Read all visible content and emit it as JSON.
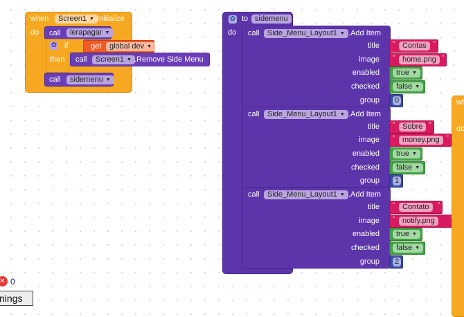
{
  "init_block": {
    "when": "when",
    "component": "Screen1",
    "event": ".Initialize",
    "do": "do",
    "call1": {
      "call": "call",
      "proc": "lerapagar"
    },
    "if_block": {
      "if": "if",
      "then": "then",
      "get": "get",
      "var": "global dev"
    },
    "remove_call": {
      "call": "call",
      "component": "Screen1",
      "method": ".Remove Side Menu"
    },
    "call2": {
      "call": "call",
      "proc": "sidemenu"
    }
  },
  "proc_block": {
    "to": "to",
    "name": "sidemenu",
    "do": "do",
    "items": [
      {
        "call": "call",
        "component": "Side_Menu_Layout1",
        "method": ".Add Item",
        "title_label": "title",
        "title": "Contas",
        "image_label": "image",
        "image": "home.png",
        "enabled_label": "enabled",
        "enabled": "true",
        "checked_label": "checked",
        "checked": "false",
        "group_label": "group",
        "group": "0"
      },
      {
        "call": "call",
        "component": "Side_Menu_Layout1",
        "method": ".Add Item",
        "title_label": "title",
        "title": "Sobre",
        "image_label": "image",
        "image": "money.png",
        "enabled_label": "enabled",
        "enabled": "true",
        "checked_label": "checked",
        "checked": "false",
        "group_label": "group",
        "group": "1"
      },
      {
        "call": "call",
        "component": "Side_Menu_Layout1",
        "method": ".Add Item",
        "title_label": "title",
        "title": "Contato",
        "image_label": "image",
        "image": "notify.png",
        "enabled_label": "enabled",
        "enabled": "true",
        "checked_label": "checked",
        "checked": "false",
        "group_label": "group",
        "group": "2"
      }
    ]
  },
  "partial_block": {
    "when": "wh",
    "do": "do"
  },
  "status": {
    "error_count": "0",
    "warnings_button": "nings"
  },
  "icons": {
    "error": "error-icon",
    "gear": "gear-icon",
    "dropdown": "chevron-down-icon"
  },
  "colors": {
    "event": "#f7a823",
    "procedure": "#5d35ab",
    "text": "#d81b60",
    "logic": "#44a044",
    "math": "#3b4ba1",
    "variable": "#f15a24"
  }
}
